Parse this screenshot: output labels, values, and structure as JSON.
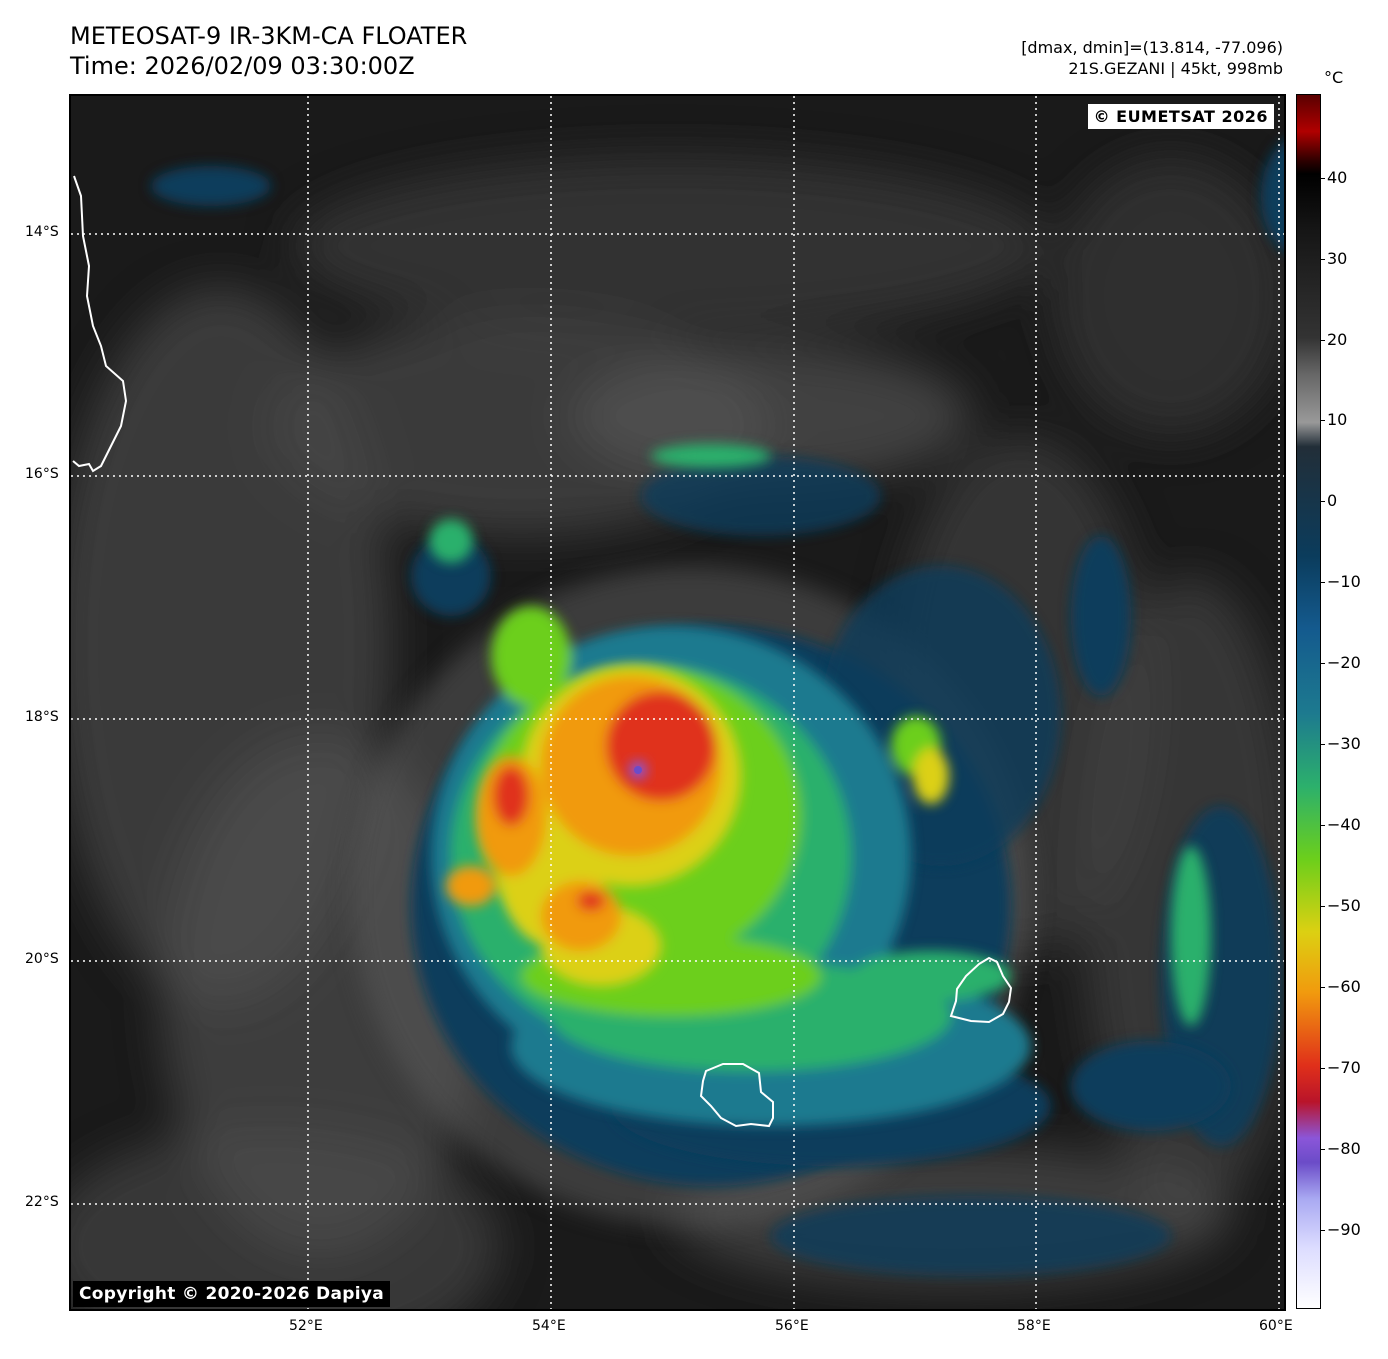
{
  "header": {
    "title": "METEOSAT-9 IR-3KM-CA FLOATER",
    "time": "Time: 2026/02/09 03:30:00Z",
    "dminmax": "[dmax, dmin]=(13.814, -77.096)",
    "storm": "21S.GEZANI | 45kt, 998mb"
  },
  "map": {
    "lat_labels": [
      "14°S",
      "16°S",
      "18°S",
      "20°S",
      "22°S"
    ],
    "lon_labels": [
      "52°E",
      "54°E",
      "56°E",
      "58°E",
      "60°E"
    ],
    "lat_range": [
      -22.9,
      -12.9
    ],
    "lon_range": [
      50.05,
      60.05
    ],
    "gridlines": true,
    "credit_top": "© EUMETSAT 2026",
    "credit_bottom": "Copyright © 2020-2026 Dapiya",
    "coastlines": [
      "Madagascar (east coast)",
      "Réunion",
      "Mauritius"
    ],
    "storm_center": {
      "lat": -18.4,
      "lon": 54.7
    }
  },
  "colorbar": {
    "unit": "°C",
    "labels": [
      "40",
      "30",
      "20",
      "10",
      "0",
      "−10",
      "−20",
      "−30",
      "−40",
      "−50",
      "−60",
      "−70",
      "−80",
      "−90"
    ],
    "range": [
      -100,
      50
    ],
    "colors": {
      "warm_top": "#5a0000",
      "warm_gray": "#333333",
      "cold_blue": "#145a8e",
      "teal": "#1d7a8f",
      "green": "#6ccf1b",
      "yellow": "#dcd012",
      "orange": "#f19a0e",
      "red": "#e0301a",
      "purple": "#8b56d9",
      "white": "#ffffff"
    }
  }
}
